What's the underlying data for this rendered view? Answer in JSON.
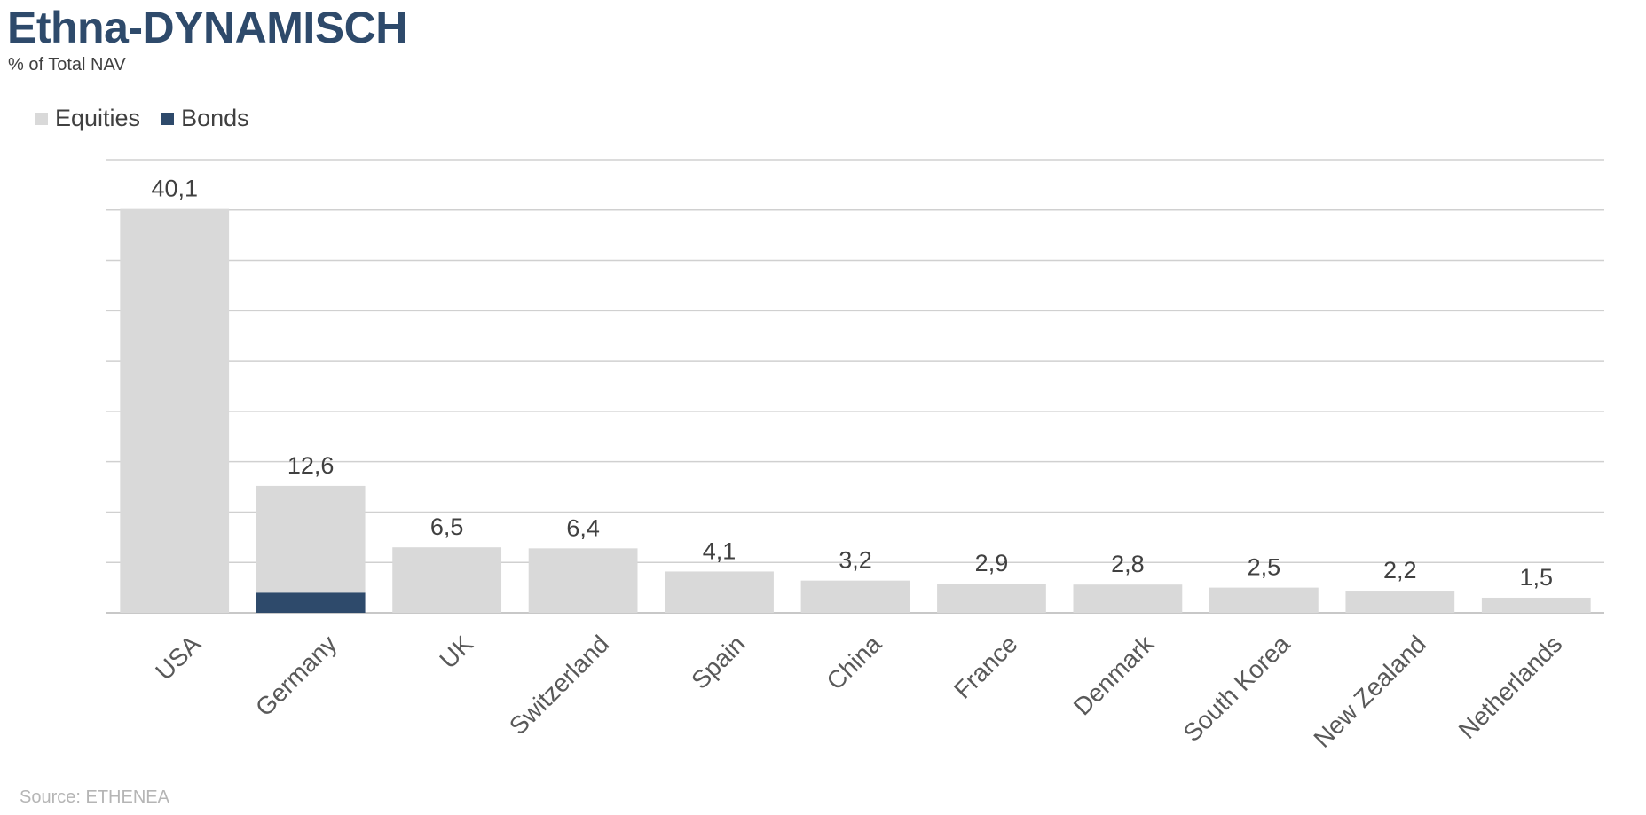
{
  "header": {
    "title": "Ethna-DYNAMISCH",
    "subtitle": "% of Total NAV"
  },
  "footer": {
    "source": "Source: ETHENEA"
  },
  "colors": {
    "equities": "#d9d9d9",
    "bonds": "#2e4a6b",
    "grid": "#d0d0d0",
    "axis": "#c8c8c8"
  },
  "chart_data": {
    "type": "bar",
    "stacked": true,
    "title": "Ethna-DYNAMISCH",
    "subtitle": "% of Total NAV",
    "categories": [
      "USA",
      "Germany",
      "UK",
      "Switzerland",
      "Spain",
      "China",
      "France",
      "Denmark",
      "South Korea",
      "New Zealand",
      "Netherlands"
    ],
    "series": [
      {
        "name": "Equities",
        "values": [
          40.1,
          10.6,
          6.5,
          6.4,
          4.1,
          3.2,
          2.9,
          2.8,
          2.5,
          2.2,
          1.5
        ]
      },
      {
        "name": "Bonds",
        "values": [
          0,
          2.0,
          0,
          0,
          0,
          0,
          0,
          0,
          0,
          0,
          0
        ]
      }
    ],
    "totals": [
      "40,1",
      "12,6",
      "6,5",
      "6,4",
      "4,1",
      "3,2",
      "2,9",
      "2,8",
      "2,5",
      "2,2",
      "1,5"
    ],
    "total_values": [
      40.1,
      12.6,
      6.5,
      6.4,
      4.1,
      3.2,
      2.9,
      2.8,
      2.5,
      2.2,
      1.5
    ],
    "ylim": [
      0,
      45
    ],
    "grid_step": 5,
    "grid": true,
    "legend_position": "top-left",
    "xlabel": "",
    "ylabel": ""
  }
}
